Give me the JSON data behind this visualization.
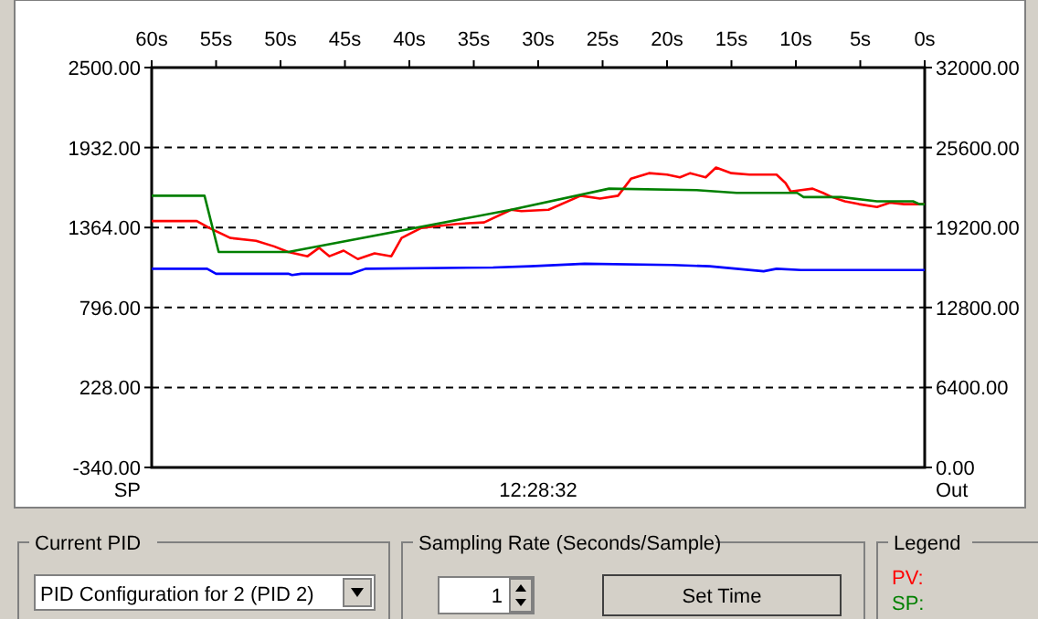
{
  "chart_data": {
    "type": "line",
    "xlabel": "12:28:32",
    "ylabel": "SP",
    "y2label": "Out",
    "legend_title": "Legend",
    "legend": "bottom right",
    "grid": "y",
    "line_style": "solid",
    "marker": "none",
    "xlim": [
      60,
      0
    ],
    "xticks": [
      {
        "value": 60,
        "label": "60s"
      },
      {
        "value": 55,
        "label": "55s"
      },
      {
        "value": 50,
        "label": "50s"
      },
      {
        "value": 45,
        "label": "45s"
      },
      {
        "value": 40,
        "label": "40s"
      },
      {
        "value": 35,
        "label": "35s"
      },
      {
        "value": 30,
        "label": "30s"
      },
      {
        "value": 25,
        "label": "25s"
      },
      {
        "value": 20,
        "label": "20s"
      },
      {
        "value": 15,
        "label": "15s"
      },
      {
        "value": 10,
        "label": "10s"
      },
      {
        "value": 5,
        "label": "5s"
      },
      {
        "value": 0,
        "label": "0s"
      }
    ],
    "ylim": [
      -340,
      2500
    ],
    "yticks": [
      {
        "value": -340,
        "label": "-340.00"
      },
      {
        "value": 228,
        "label": "228.00"
      },
      {
        "value": 796,
        "label": "796.00"
      },
      {
        "value": 1364,
        "label": "1364.00"
      },
      {
        "value": 1932,
        "label": "1932.00"
      },
      {
        "value": 2500,
        "label": "2500.00"
      }
    ],
    "y2lim": [
      0,
      32000
    ],
    "y2ticks": [
      {
        "value": 0,
        "label": "0.00"
      },
      {
        "value": 6400,
        "label": "6400.00"
      },
      {
        "value": 12800,
        "label": "12800.00"
      },
      {
        "value": 19200,
        "label": "19200.00"
      },
      {
        "value": 25600,
        "label": "25600.00"
      },
      {
        "value": 32000,
        "label": "32000.00"
      }
    ],
    "series": [
      {
        "name": "PV:",
        "color": "#ff0000",
        "x": [
          60,
          56.5,
          55.5,
          53.9,
          51.9,
          50.5,
          49.4,
          47.9,
          47.0,
          46.2,
          45.1,
          44.0,
          42.7,
          41.4,
          40.6,
          39.1,
          36.3,
          34.2,
          32.1,
          31.3,
          29.2,
          26.7,
          25.2,
          23.8,
          22.8,
          21.4,
          20.0,
          19.0,
          18.2,
          17.0,
          16.2,
          15.0,
          13.6,
          12.2,
          11.5,
          10.8,
          10.4,
          9.6,
          8.7,
          7.9,
          7.2,
          6.2,
          5.1,
          3.7,
          2.7,
          1.6,
          0
        ],
        "values": [
          1410,
          1410,
          1360,
          1290,
          1270,
          1230,
          1190,
          1160,
          1220,
          1160,
          1200,
          1140,
          1180,
          1160,
          1290,
          1360,
          1390,
          1400,
          1490,
          1480,
          1490,
          1590,
          1570,
          1590,
          1710,
          1750,
          1740,
          1720,
          1750,
          1720,
          1790,
          1750,
          1740,
          1740,
          1740,
          1680,
          1620,
          1630,
          1640,
          1610,
          1580,
          1550,
          1530,
          1510,
          1540,
          1530,
          1530
        ]
      },
      {
        "name": "SP:",
        "color": "#008000",
        "x": [
          60,
          55.9,
          54.8,
          49.4,
          32.1,
          24.5,
          17.7,
          14.6,
          9.9,
          9.4,
          6.5,
          3.7,
          0.9,
          0.4,
          0
        ],
        "values": [
          1590,
          1590,
          1190,
          1190,
          1490,
          1640,
          1630,
          1610,
          1610,
          1580,
          1580,
          1550,
          1550,
          1530,
          1530
        ]
      },
      {
        "color": "#0000ff",
        "axis": "y2",
        "x": [
          60,
          55.7,
          55.0,
          49.4,
          49.1,
          48.4,
          44.5,
          43.4,
          33.5,
          30.6,
          26.4,
          19.6,
          16.7,
          14.6,
          12.5,
          11.5,
          9.6,
          0
        ],
        "values": [
          15900,
          15900,
          15500,
          15500,
          15400,
          15500,
          15500,
          15900,
          16000,
          16100,
          16300,
          16200,
          16100,
          15900,
          15700,
          15900,
          15800,
          15800
        ]
      }
    ],
    "annotations": [
      "Current PID",
      "PID Configuration for 2 (PID 2)",
      "Sampling Rate (Seconds/Sample)",
      "1",
      "Set Time"
    ]
  }
}
